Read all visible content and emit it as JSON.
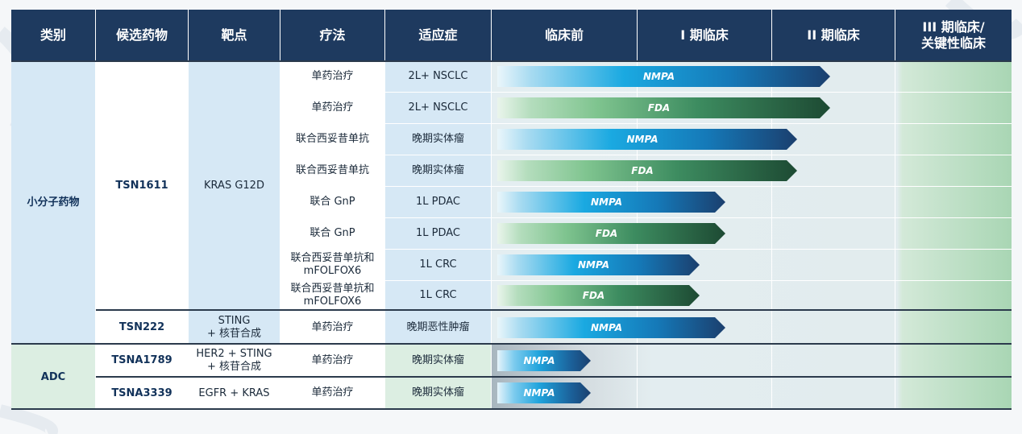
{
  "headers": {
    "category": "类别",
    "candidate": "候选药物",
    "target": "靶点",
    "therapy": "疗法",
    "indication": "适应症",
    "preclinical": "临床前",
    "phase1": "I 期临床",
    "phase2": "II 期临床",
    "phase3_line1": "III 期临床/",
    "phase3_line2": "关键性临床"
  },
  "groups": [
    {
      "category": "小分子药物"
    },
    {
      "category": "ADC"
    }
  ],
  "candidates": [
    {
      "name": "TSN1611",
      "target": "KRAS G12D"
    },
    {
      "name": "TSN222",
      "target_line1": "STING",
      "target_line2": "+ 核苷合成"
    },
    {
      "name": "TSNA1789",
      "target_line1": "HER2 + STING",
      "target_line2": "+ 核苷合成"
    },
    {
      "name": "TSNA3339",
      "target": "EGFR + KRAS"
    }
  ],
  "rows": [
    {
      "therapy": "单药治疗",
      "indication": "2L+ NSCLC",
      "agency": "NMPA",
      "progress_pct": 27.0,
      "style": "nmpa"
    },
    {
      "therapy": "单药治疗",
      "indication": "2L+ NSCLC",
      "agency": "FDA",
      "progress_pct": 27.0,
      "style": "fda"
    },
    {
      "therapy": "联合西妥昔单抗",
      "indication": "晚期实体瘤",
      "agency": "NMPA",
      "progress_pct": 24.3,
      "style": "nmpa"
    },
    {
      "therapy": "联合西妥昔单抗",
      "indication": "晚期实体瘤",
      "agency": "FDA",
      "progress_pct": 24.3,
      "style": "fda"
    },
    {
      "therapy": "联合 GnP",
      "indication": "1L PDAC",
      "agency": "NMPA",
      "progress_pct": 18.5,
      "style": "nmpa"
    },
    {
      "therapy": "联合 GnP",
      "indication": "1L PDAC",
      "agency": "FDA",
      "progress_pct": 18.5,
      "style": "fda"
    },
    {
      "therapy_line1": "联合西妥昔单抗和",
      "therapy_line2": "mFOLFOX6",
      "indication": "1L CRC",
      "agency": "NMPA",
      "progress_pct": 16.4,
      "style": "nmpa"
    },
    {
      "therapy_line1": "联合西妥昔单抗和",
      "therapy_line2": "mFOLFOX6",
      "indication": "1L CRC",
      "agency": "FDA",
      "progress_pct": 16.4,
      "style": "fda"
    },
    {
      "therapy": "单药治疗",
      "indication": "晚期恶性肿瘤",
      "agency": "NMPA",
      "progress_pct": 18.5,
      "style": "nmpa"
    },
    {
      "therapy": "单药治疗",
      "indication": "晚期实体瘤",
      "agency": "NMPA",
      "progress_pct": 7.6,
      "style": "nmpa-short"
    },
    {
      "therapy": "单药治疗",
      "indication": "晚期实体瘤",
      "agency": "NMPA",
      "progress_pct": 7.6,
      "style": "nmpa-short"
    }
  ],
  "colors": {
    "header_bg": "#1e3a5f",
    "small_molecule_bg": "#d6e8f5",
    "adc_bg": "#dceee2",
    "nmpa_bar": "#1aa9e1",
    "fda_bar": "#3d8c60",
    "pivotal_column_bg": "#a9d6b4"
  }
}
